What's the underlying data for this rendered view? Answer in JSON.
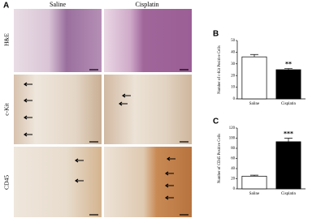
{
  "panel_a": {
    "panel_label": "A",
    "columns": [
      "Saline",
      "Cisplatin"
    ],
    "rows": [
      "H&E",
      "c-Kit",
      "CD45"
    ]
  },
  "chart_data": [
    {
      "type": "bar",
      "panel_label": "B",
      "ylabel": "Number of c-Kit Positive Cells",
      "categories": [
        "Saline",
        "Cisplatin"
      ],
      "values": [
        36,
        25
      ],
      "errors": [
        2,
        1
      ],
      "colors": [
        "#ffffff",
        "#000000"
      ],
      "significance": [
        null,
        "**"
      ],
      "ylim": [
        0,
        50
      ],
      "yticks": [
        0,
        10,
        20,
        30,
        40,
        50
      ]
    },
    {
      "type": "bar",
      "panel_label": "C",
      "ylabel": "Number of CD45 Positive Cells",
      "categories": [
        "Saline",
        "Cisplatin"
      ],
      "values": [
        25,
        93
      ],
      "errors": [
        2,
        7
      ],
      "colors": [
        "#ffffff",
        "#000000"
      ],
      "significance": [
        null,
        "***"
      ],
      "ylim": [
        0,
        120
      ],
      "yticks": [
        0,
        20,
        40,
        60,
        80,
        100,
        120
      ]
    }
  ]
}
